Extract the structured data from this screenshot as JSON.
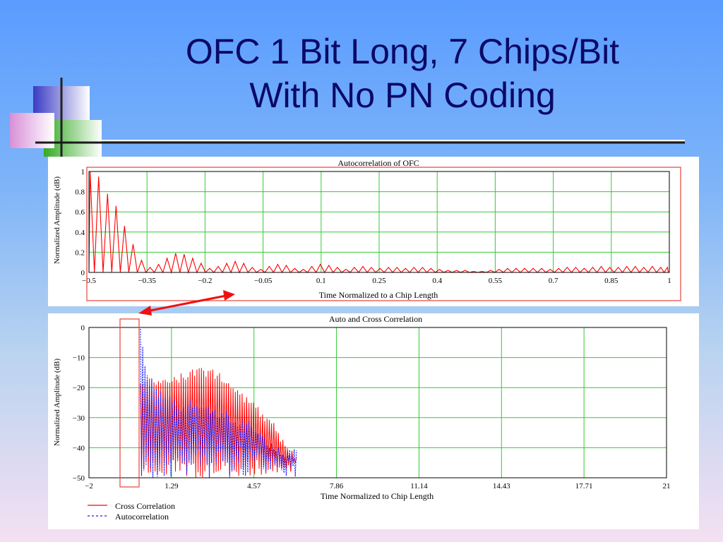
{
  "slide": {
    "title_line1": "OFC 1 Bit Long, 7 Chips/Bit",
    "title_line2": "With No PN Coding"
  },
  "colors": {
    "title": "#0a0a66",
    "grid": "#33cc33",
    "series_red": "#ff0000",
    "series_blue": "#1a1aff",
    "highlight": "#e8423a",
    "arrow": "#ee1111"
  },
  "chart_data": [
    {
      "type": "line",
      "title": "Autocorrelation of OFC",
      "xlabel": "Time Normalized to a Chip Length",
      "ylabel": "Normalized Amplitude (dB)",
      "xlim": [
        -0.5,
        1
      ],
      "ylim": [
        0,
        1
      ],
      "x_ticks": [
        "-0.5",
        "-0.35",
        "-0.2",
        "-0.05",
        "0.1",
        "0.25",
        "0.4",
        "0.55",
        "0.7",
        "0.85",
        "1"
      ],
      "y_ticks": [
        "0",
        "0.2",
        "0.4",
        "0.6",
        "0.8",
        "1"
      ],
      "grid": true,
      "series": [
        {
          "color": "#ff0000",
          "lobe_peaks": [
            {
              "x": -0.497,
              "y": 1.0
            },
            {
              "x": -0.475,
              "y": 0.95
            },
            {
              "x": -0.452,
              "y": 0.78
            },
            {
              "x": -0.43,
              "y": 0.66
            },
            {
              "x": -0.408,
              "y": 0.46
            },
            {
              "x": -0.386,
              "y": 0.28
            },
            {
              "x": -0.364,
              "y": 0.12
            },
            {
              "x": -0.342,
              "y": 0.05
            },
            {
              "x": -0.32,
              "y": 0.08
            },
            {
              "x": -0.298,
              "y": 0.14
            },
            {
              "x": -0.276,
              "y": 0.19
            },
            {
              "x": -0.254,
              "y": 0.18
            },
            {
              "x": -0.232,
              "y": 0.14
            },
            {
              "x": -0.21,
              "y": 0.09
            },
            {
              "x": -0.188,
              "y": 0.04
            },
            {
              "x": -0.166,
              "y": 0.06
            },
            {
              "x": -0.144,
              "y": 0.09
            },
            {
              "x": -0.122,
              "y": 0.11
            },
            {
              "x": -0.1,
              "y": 0.09
            },
            {
              "x": -0.078,
              "y": 0.05
            },
            {
              "x": -0.056,
              "y": 0.03
            },
            {
              "x": -0.034,
              "y": 0.06
            },
            {
              "x": -0.012,
              "y": 0.08
            },
            {
              "x": 0.01,
              "y": 0.07
            },
            {
              "x": 0.032,
              "y": 0.04
            },
            {
              "x": 0.054,
              "y": 0.03
            },
            {
              "x": 0.076,
              "y": 0.06
            },
            {
              "x": 0.098,
              "y": 0.08
            },
            {
              "x": 0.12,
              "y": 0.07
            },
            {
              "x": 0.142,
              "y": 0.05
            },
            {
              "x": 0.164,
              "y": 0.03
            },
            {
              "x": 0.186,
              "y": 0.05
            },
            {
              "x": 0.208,
              "y": 0.06
            },
            {
              "x": 0.23,
              "y": 0.05
            },
            {
              "x": 0.252,
              "y": 0.04
            },
            {
              "x": 0.274,
              "y": 0.05
            },
            {
              "x": 0.296,
              "y": 0.05
            },
            {
              "x": 0.318,
              "y": 0.04
            },
            {
              "x": 0.34,
              "y": 0.05
            },
            {
              "x": 0.362,
              "y": 0.05
            },
            {
              "x": 0.384,
              "y": 0.04
            },
            {
              "x": 0.406,
              "y": 0.03
            },
            {
              "x": 0.428,
              "y": 0.02
            },
            {
              "x": 0.45,
              "y": 0.02
            },
            {
              "x": 0.472,
              "y": 0.02
            },
            {
              "x": 0.494,
              "y": 0.01
            },
            {
              "x": 0.516,
              "y": 0.01
            },
            {
              "x": 0.538,
              "y": 0.02
            },
            {
              "x": 0.56,
              "y": 0.03
            },
            {
              "x": 0.582,
              "y": 0.04
            },
            {
              "x": 0.604,
              "y": 0.04
            },
            {
              "x": 0.626,
              "y": 0.04
            },
            {
              "x": 0.648,
              "y": 0.04
            },
            {
              "x": 0.67,
              "y": 0.04
            },
            {
              "x": 0.692,
              "y": 0.03
            },
            {
              "x": 0.714,
              "y": 0.04
            },
            {
              "x": 0.736,
              "y": 0.05
            },
            {
              "x": 0.758,
              "y": 0.05
            },
            {
              "x": 0.78,
              "y": 0.04
            },
            {
              "x": 0.802,
              "y": 0.05
            },
            {
              "x": 0.824,
              "y": 0.06
            },
            {
              "x": 0.846,
              "y": 0.05
            },
            {
              "x": 0.868,
              "y": 0.05
            },
            {
              "x": 0.89,
              "y": 0.06
            },
            {
              "x": 0.912,
              "y": 0.06
            },
            {
              "x": 0.934,
              "y": 0.05
            },
            {
              "x": 0.956,
              "y": 0.06
            },
            {
              "x": 0.978,
              "y": 0.05
            },
            {
              "x": 0.995,
              "y": 0.05
            }
          ]
        }
      ]
    },
    {
      "type": "line",
      "title": "Auto and Cross Correlation",
      "xlabel": "Time Normalized to Chip Length",
      "ylabel": "Normalized Amplitude (dB)",
      "xlim": [
        -2,
        21
      ],
      "ylim": [
        -50,
        0
      ],
      "x_ticks": [
        "-2",
        "1.29",
        "4.57",
        "7.86",
        "11.14",
        "14.43",
        "17.71",
        "21"
      ],
      "y_ticks": [
        "0",
        "-10",
        "-20",
        "-30",
        "-40",
        "-50"
      ],
      "grid": true,
      "legend_position": "bottom-left",
      "series": [
        {
          "name": "Cross Correlation",
          "color": "#ff0000",
          "style": "solid",
          "x_range": [
            0.05,
            6.3
          ],
          "peak_envelope": [
            {
              "x": 0.05,
              "y": -16
            },
            {
              "x": 0.6,
              "y": -17
            },
            {
              "x": 1.2,
              "y": -16
            },
            {
              "x": 1.8,
              "y": -15
            },
            {
              "x": 2.4,
              "y": -13
            },
            {
              "x": 3.0,
              "y": -14
            },
            {
              "x": 3.6,
              "y": -17
            },
            {
              "x": 4.2,
              "y": -22
            },
            {
              "x": 4.8,
              "y": -27
            },
            {
              "x": 5.4,
              "y": -32
            },
            {
              "x": 5.9,
              "y": -40
            },
            {
              "x": 6.3,
              "y": -42
            }
          ]
        },
        {
          "name": "Autocorrelation",
          "color": "#1a1aff",
          "style": "dashed",
          "x_range": [
            0.05,
            6.3
          ],
          "peak_envelope": [
            {
              "x": 0.05,
              "y": 0
            },
            {
              "x": 0.3,
              "y": -15
            },
            {
              "x": 0.9,
              "y": -21
            },
            {
              "x": 1.5,
              "y": -24
            },
            {
              "x": 2.1,
              "y": -24
            },
            {
              "x": 2.7,
              "y": -26
            },
            {
              "x": 3.3,
              "y": -27
            },
            {
              "x": 3.9,
              "y": -29
            },
            {
              "x": 4.5,
              "y": -30
            },
            {
              "x": 5.1,
              "y": -36
            },
            {
              "x": 5.7,
              "y": -40
            },
            {
              "x": 6.3,
              "y": -40
            }
          ]
        }
      ]
    }
  ]
}
